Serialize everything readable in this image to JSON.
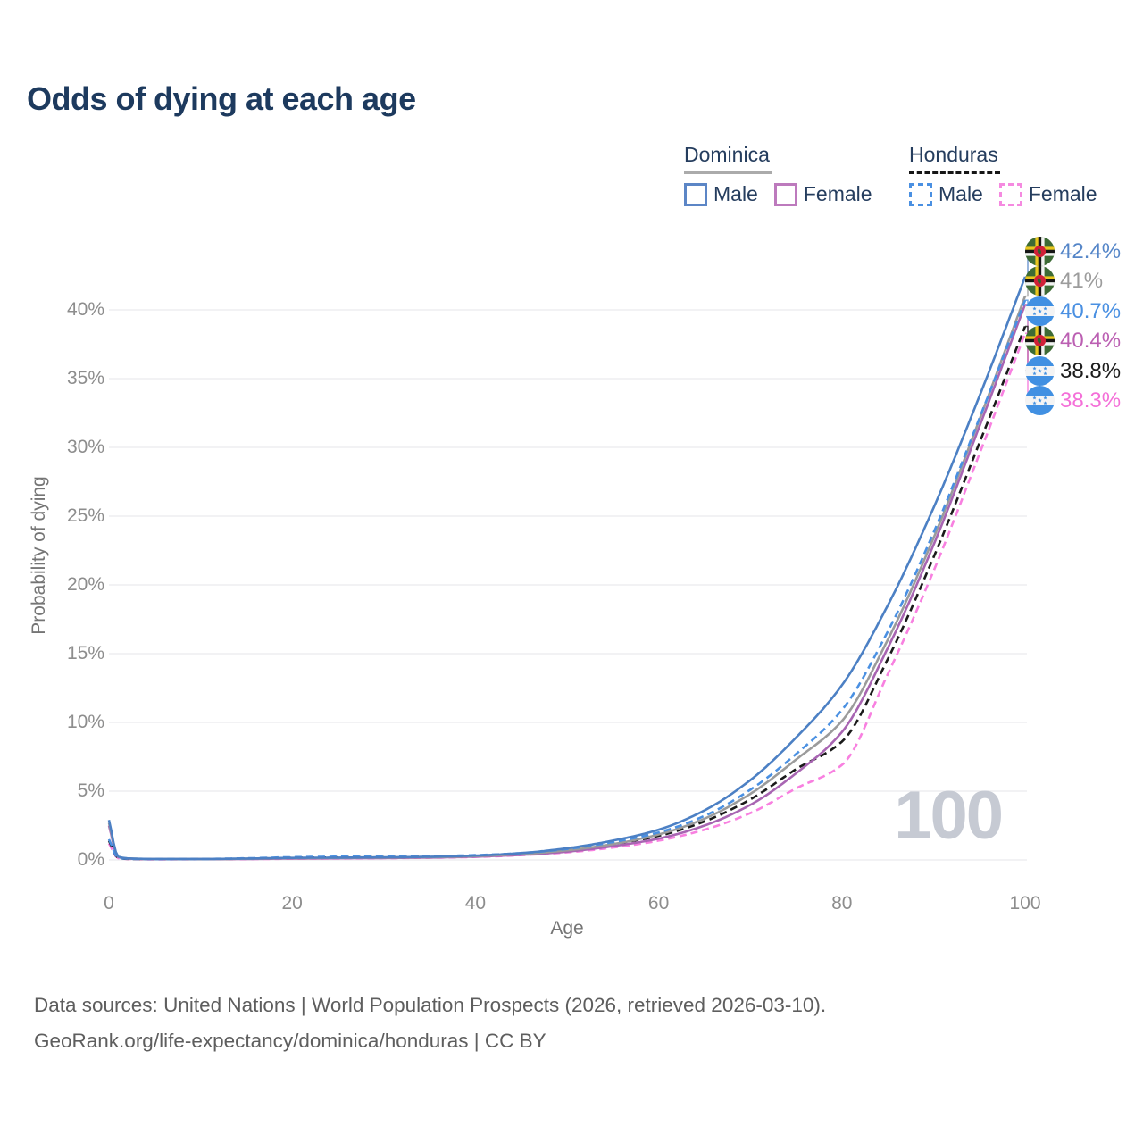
{
  "title": "Odds of dying at each age",
  "watermark": "100",
  "legend": {
    "groups": [
      {
        "label": "Dominica",
        "line_style": "solid",
        "underline_color": "#ababab",
        "items": [
          {
            "label": "Male",
            "color": "#4c80c4",
            "dashed": false
          },
          {
            "label": "Female",
            "color": "#bd7abd",
            "dashed": false
          }
        ]
      },
      {
        "label": "Honduras",
        "line_style": "dashed",
        "underline_color": "#161616",
        "items": [
          {
            "label": "Male",
            "color": "#4a90e2",
            "dashed": true
          },
          {
            "label": "Female",
            "color": "#f58ae0",
            "dashed": true
          }
        ]
      }
    ]
  },
  "chart_data": {
    "type": "line",
    "title": "Odds of dying at each age",
    "xlabel": "Age",
    "ylabel": "Probability of dying",
    "xlim": [
      0,
      100
    ],
    "ylim": [
      0,
      44
    ],
    "grid": "horizontal",
    "x_ticks": [
      {
        "v": 0,
        "label": "0"
      },
      {
        "v": 20,
        "label": "20"
      },
      {
        "v": 40,
        "label": "40"
      },
      {
        "v": 60,
        "label": "60"
      },
      {
        "v": 80,
        "label": "80"
      },
      {
        "v": 100,
        "label": "100"
      }
    ],
    "y_ticks": [
      {
        "v": 0,
        "label": "0%"
      },
      {
        "v": 5,
        "label": "5%"
      },
      {
        "v": 10,
        "label": "10%"
      },
      {
        "v": 15,
        "label": "15%"
      },
      {
        "v": 20,
        "label": "20%"
      },
      {
        "v": 25,
        "label": "25%"
      },
      {
        "v": 30,
        "label": "30%"
      },
      {
        "v": 35,
        "label": "35%"
      },
      {
        "v": 40,
        "label": "40%"
      }
    ],
    "end_age_marker": "100",
    "ages": [
      0,
      1,
      2,
      5,
      10,
      15,
      20,
      25,
      30,
      35,
      40,
      45,
      50,
      55,
      60,
      65,
      70,
      75,
      80,
      85,
      90,
      95,
      100
    ],
    "series": [
      {
        "name": "Dominica Male",
        "country": "Dominica",
        "sex": "Male",
        "line_style": "solid",
        "color": "#4c80c4",
        "label_color": "#5586c8",
        "flag": "dominica",
        "end_label": "42.4%",
        "end_value": 42.4,
        "values": [
          2.9,
          0.25,
          0.12,
          0.07,
          0.07,
          0.1,
          0.15,
          0.17,
          0.19,
          0.23,
          0.32,
          0.5,
          0.85,
          1.4,
          2.2,
          3.6,
          5.8,
          8.9,
          12.7,
          18.5,
          25.6,
          33.7,
          42.4
        ]
      },
      {
        "name": "Dominica Total",
        "country": "Dominica",
        "sex": "Both",
        "line_style": "solid",
        "color": "#9b9b9b",
        "label_color": "#9c9c9c",
        "flag": "dominica",
        "end_label": "41%",
        "end_value": 41.0,
        "values": [
          2.7,
          0.23,
          0.11,
          0.06,
          0.06,
          0.09,
          0.13,
          0.15,
          0.17,
          0.2,
          0.28,
          0.43,
          0.7,
          1.15,
          1.85,
          3.0,
          4.8,
          7.3,
          10.1,
          16.0,
          23.4,
          32.0,
          41.0
        ]
      },
      {
        "name": "Honduras Male",
        "country": "Honduras",
        "sex": "Male",
        "line_style": "dashed",
        "color": "#4a90e2",
        "label_color": "#4a90e2",
        "flag": "honduras",
        "end_label": "40.7%",
        "end_value": 40.7,
        "values": [
          1.5,
          0.16,
          0.09,
          0.06,
          0.07,
          0.12,
          0.2,
          0.24,
          0.26,
          0.28,
          0.35,
          0.5,
          0.8,
          1.3,
          2.0,
          3.2,
          5.1,
          7.7,
          10.9,
          16.6,
          23.8,
          32.1,
          40.7
        ]
      },
      {
        "name": "Dominica Female",
        "country": "Dominica",
        "sex": "Female",
        "line_style": "solid",
        "color": "#a865b2",
        "label_color": "#bb5fb2",
        "flag": "dominica",
        "end_label": "40.4%",
        "end_value": 40.4,
        "values": [
          2.5,
          0.21,
          0.1,
          0.05,
          0.05,
          0.07,
          0.1,
          0.12,
          0.14,
          0.17,
          0.24,
          0.37,
          0.6,
          1.0,
          1.55,
          2.5,
          4.0,
          6.3,
          9.3,
          15.4,
          22.9,
          31.5,
          40.4
        ]
      },
      {
        "name": "Honduras Total",
        "country": "Honduras",
        "sex": "Both",
        "line_style": "dashed",
        "color": "#1a1a1a",
        "label_color": "#1d1d1d",
        "flag": "honduras",
        "end_label": "38.8%",
        "end_value": 38.8,
        "values": [
          1.4,
          0.15,
          0.08,
          0.05,
          0.06,
          0.09,
          0.15,
          0.18,
          0.2,
          0.23,
          0.3,
          0.44,
          0.7,
          1.15,
          1.75,
          2.8,
          4.4,
          6.6,
          8.6,
          14.6,
          22.0,
          30.3,
          38.8
        ]
      },
      {
        "name": "Honduras Female",
        "country": "Honduras",
        "sex": "Female",
        "line_style": "dashed",
        "color": "#f880e0",
        "label_color": "#f46fd8",
        "flag": "honduras",
        "end_label": "38.3%",
        "end_value": 38.3,
        "values": [
          1.2,
          0.13,
          0.07,
          0.04,
          0.05,
          0.06,
          0.09,
          0.11,
          0.13,
          0.16,
          0.22,
          0.35,
          0.55,
          0.9,
          1.4,
          2.2,
          3.4,
          5.2,
          6.9,
          13.5,
          21.0,
          29.5,
          38.3
        ]
      }
    ]
  },
  "footer": {
    "line1": "Data sources: United Nations | World Population Prospects (2026, retrieved 2026-03-10).",
    "line2": "GeoRank.org/life-expectancy/dominica/honduras | CC BY"
  }
}
